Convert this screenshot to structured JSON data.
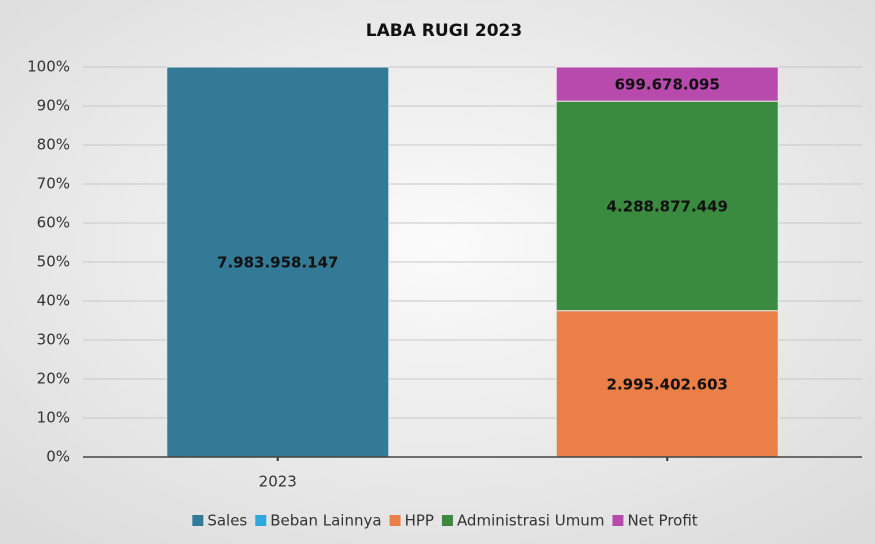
{
  "chart_data": {
    "type": "bar",
    "stacking": "percent",
    "title": "LABA RUGI 2023",
    "categories": [
      "2023",
      null
    ],
    "series": [
      {
        "name": "Sales",
        "color": "#337a96",
        "values": [
          7983958147,
          null
        ],
        "value_labels": [
          "7.983.958.147",
          null
        ]
      },
      {
        "name": "Beban Lainnya",
        "color": "#2fa9dd",
        "values": [
          null,
          null
        ],
        "value_labels": [
          null,
          null
        ]
      },
      {
        "name": "HPP",
        "color": "#ec7f47",
        "values": [
          null,
          2995402603
        ],
        "value_labels": [
          null,
          "2.995.402.603"
        ]
      },
      {
        "name": "Administrasi Umum",
        "color": "#3a8a3f",
        "values": [
          null,
          4288877449
        ],
        "value_labels": [
          null,
          "4.288.877.449"
        ]
      },
      {
        "name": "Net Profit",
        "color": "#b84aad",
        "values": [
          null,
          699678095
        ],
        "value_labels": [
          null,
          "699.678.095"
        ]
      }
    ],
    "ylim": [
      0,
      100
    ],
    "yticks": [
      {
        "value": 0,
        "label": "0%"
      },
      {
        "value": 10,
        "label": "10%"
      },
      {
        "value": 20,
        "label": "20%"
      },
      {
        "value": 30,
        "label": "30%"
      },
      {
        "value": 40,
        "label": "40%"
      },
      {
        "value": 50,
        "label": "50%"
      },
      {
        "value": 60,
        "label": "60%"
      },
      {
        "value": 70,
        "label": "70%"
      },
      {
        "value": 80,
        "label": "80%"
      },
      {
        "value": 90,
        "label": "90%"
      },
      {
        "value": 100,
        "label": "100%"
      }
    ],
    "grid": true,
    "legend": "bottom"
  }
}
